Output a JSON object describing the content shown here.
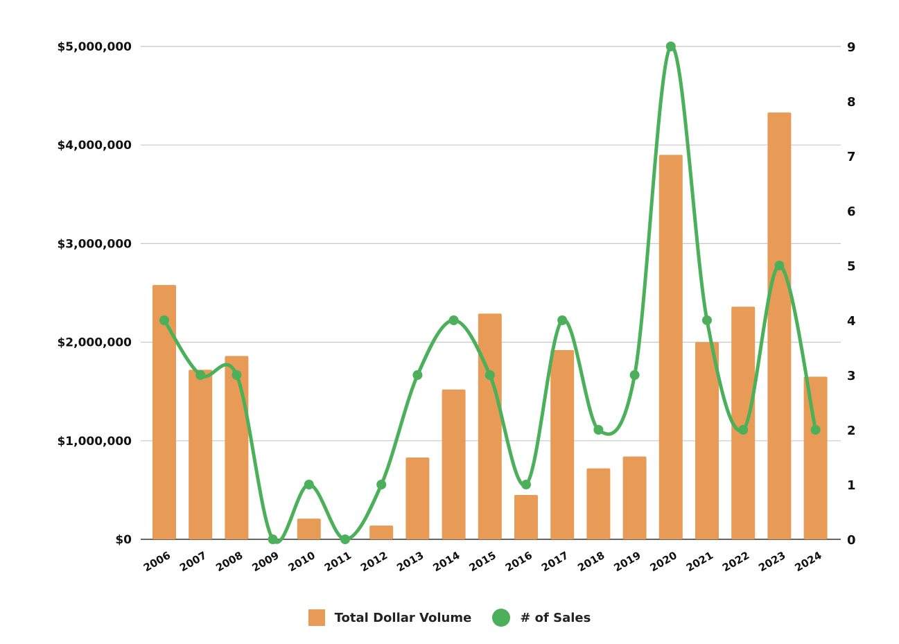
{
  "chart_data": {
    "type": "bar",
    "categories": [
      "2006",
      "2007",
      "2008",
      "2009",
      "2010",
      "2011",
      "2012",
      "2013",
      "2014",
      "2015",
      "2016",
      "2017",
      "2018",
      "2019",
      "2020",
      "2021",
      "2022",
      "2023",
      "2024"
    ],
    "series": [
      {
        "name": "Total Dollar Volume",
        "kind": "bar",
        "axis": "left",
        "color": "#e89b57",
        "values": [
          2580000,
          1720000,
          1860000,
          0,
          210000,
          0,
          140000,
          830000,
          1520000,
          2290000,
          450000,
          1920000,
          720000,
          840000,
          3900000,
          2000000,
          2360000,
          4330000,
          1650000
        ]
      },
      {
        "name": "# of Sales",
        "kind": "line",
        "axis": "right",
        "color": "#4caf5a",
        "values": [
          4,
          3,
          3,
          0,
          1,
          0,
          1,
          3,
          4,
          3,
          1,
          4,
          2,
          3,
          9,
          4,
          2,
          5,
          2
        ]
      }
    ],
    "y_left": {
      "lim": [
        0,
        5000000
      ],
      "ticks": [
        0,
        1000000,
        2000000,
        3000000,
        4000000,
        5000000
      ],
      "tick_labels": [
        "$0",
        "$1,000,000",
        "$2,000,000",
        "$3,000,000",
        "$4,000,000",
        "$5,000,000"
      ]
    },
    "y_right": {
      "lim": [
        0,
        9
      ],
      "ticks": [
        0,
        1,
        2,
        3,
        4,
        5,
        6,
        7,
        8,
        9
      ],
      "tick_labels": [
        "0",
        "1",
        "2",
        "3",
        "4",
        "5",
        "6",
        "7",
        "8",
        "9"
      ]
    },
    "grid": true,
    "legend_position": "bottom-center",
    "legend": [
      {
        "label": "Total Dollar Volume",
        "marker": "square",
        "color": "#e89b57"
      },
      {
        "label": "# of Sales",
        "marker": "circle",
        "color": "#4caf5a"
      }
    ]
  }
}
